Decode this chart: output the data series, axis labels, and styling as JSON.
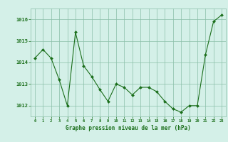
{
  "hours": [
    0,
    1,
    2,
    3,
    4,
    5,
    6,
    7,
    8,
    9,
    10,
    11,
    12,
    13,
    14,
    15,
    16,
    17,
    18,
    19,
    20,
    21,
    22,
    23
  ],
  "pressure": [
    1014.2,
    1014.6,
    1014.2,
    1013.2,
    1012.0,
    1015.4,
    1013.85,
    1013.35,
    1012.75,
    1012.2,
    1013.0,
    1012.85,
    1012.5,
    1012.85,
    1012.85,
    1012.65,
    1012.2,
    1011.85,
    1011.7,
    1012.0,
    1012.0,
    1014.35,
    1015.9,
    1016.2
  ],
  "line_color": "#1a6e1a",
  "marker_color": "#1a6e1a",
  "bg_color": "#d4f0e8",
  "grid_color": "#8abfa8",
  "xlabel": "Graphe pression niveau de la mer (hPa)",
  "xlabel_color": "#1a6e1a",
  "tick_color": "#1a6e1a",
  "ylim": [
    1011.5,
    1016.5
  ],
  "yticks": [
    1012,
    1013,
    1014,
    1015,
    1016
  ],
  "xlim": [
    -0.5,
    23.5
  ],
  "xticks": [
    0,
    1,
    2,
    3,
    4,
    5,
    6,
    7,
    8,
    9,
    10,
    11,
    12,
    13,
    14,
    15,
    16,
    17,
    18,
    19,
    20,
    21,
    22,
    23
  ],
  "figsize": [
    3.2,
    2.0
  ],
  "dpi": 100
}
